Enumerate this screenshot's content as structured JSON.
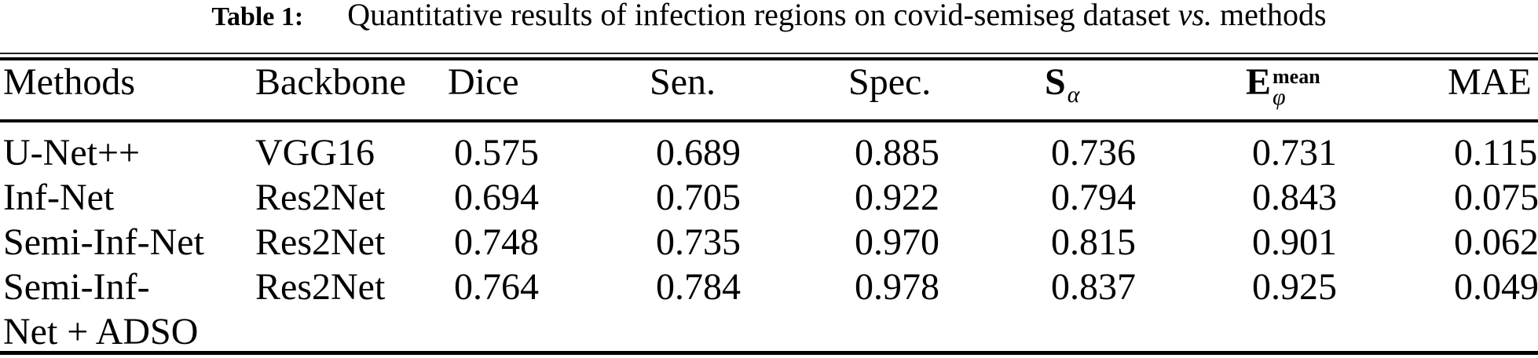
{
  "caption": {
    "label": "Table 1:",
    "text": "Quantitative results of infection regions on covid-semiseg dataset",
    "vs": "vs.",
    "tail": "methods"
  },
  "table": {
    "headers": {
      "methods": "Methods",
      "backbone": "Backbone",
      "dice": "Dice",
      "sen": "Sen.",
      "spec": "Spec.",
      "s_main": "S",
      "s_sub": "α",
      "e_main": "E",
      "e_sup": "mean",
      "e_sub": "φ",
      "mae": "MAE"
    },
    "rows": [
      {
        "method": "U-Net++",
        "backbone": "VGG16",
        "dice": "0.575",
        "sen": "0.689",
        "spec": "0.885",
        "s_alpha": "0.736",
        "e_phi_mean": "0.731",
        "mae": "0.115"
      },
      {
        "method": "Inf-Net",
        "backbone": "Res2Net",
        "dice": "0.694",
        "sen": "0.705",
        "spec": "0.922",
        "s_alpha": "0.794",
        "e_phi_mean": "0.843",
        "mae": "0.075"
      },
      {
        "method": "Semi-Inf-Net",
        "backbone": "Res2Net",
        "dice": "0.748",
        "sen": "0.735",
        "spec": "0.970",
        "s_alpha": "0.815",
        "e_phi_mean": "0.901",
        "mae": "0.062"
      },
      {
        "method": "Semi-Inf-\nNet + ADSO",
        "backbone": "Res2Net",
        "dice": "0.764",
        "sen": "0.784",
        "spec": "0.978",
        "s_alpha": "0.837",
        "e_phi_mean": "0.925",
        "mae": "0.049"
      }
    ]
  }
}
